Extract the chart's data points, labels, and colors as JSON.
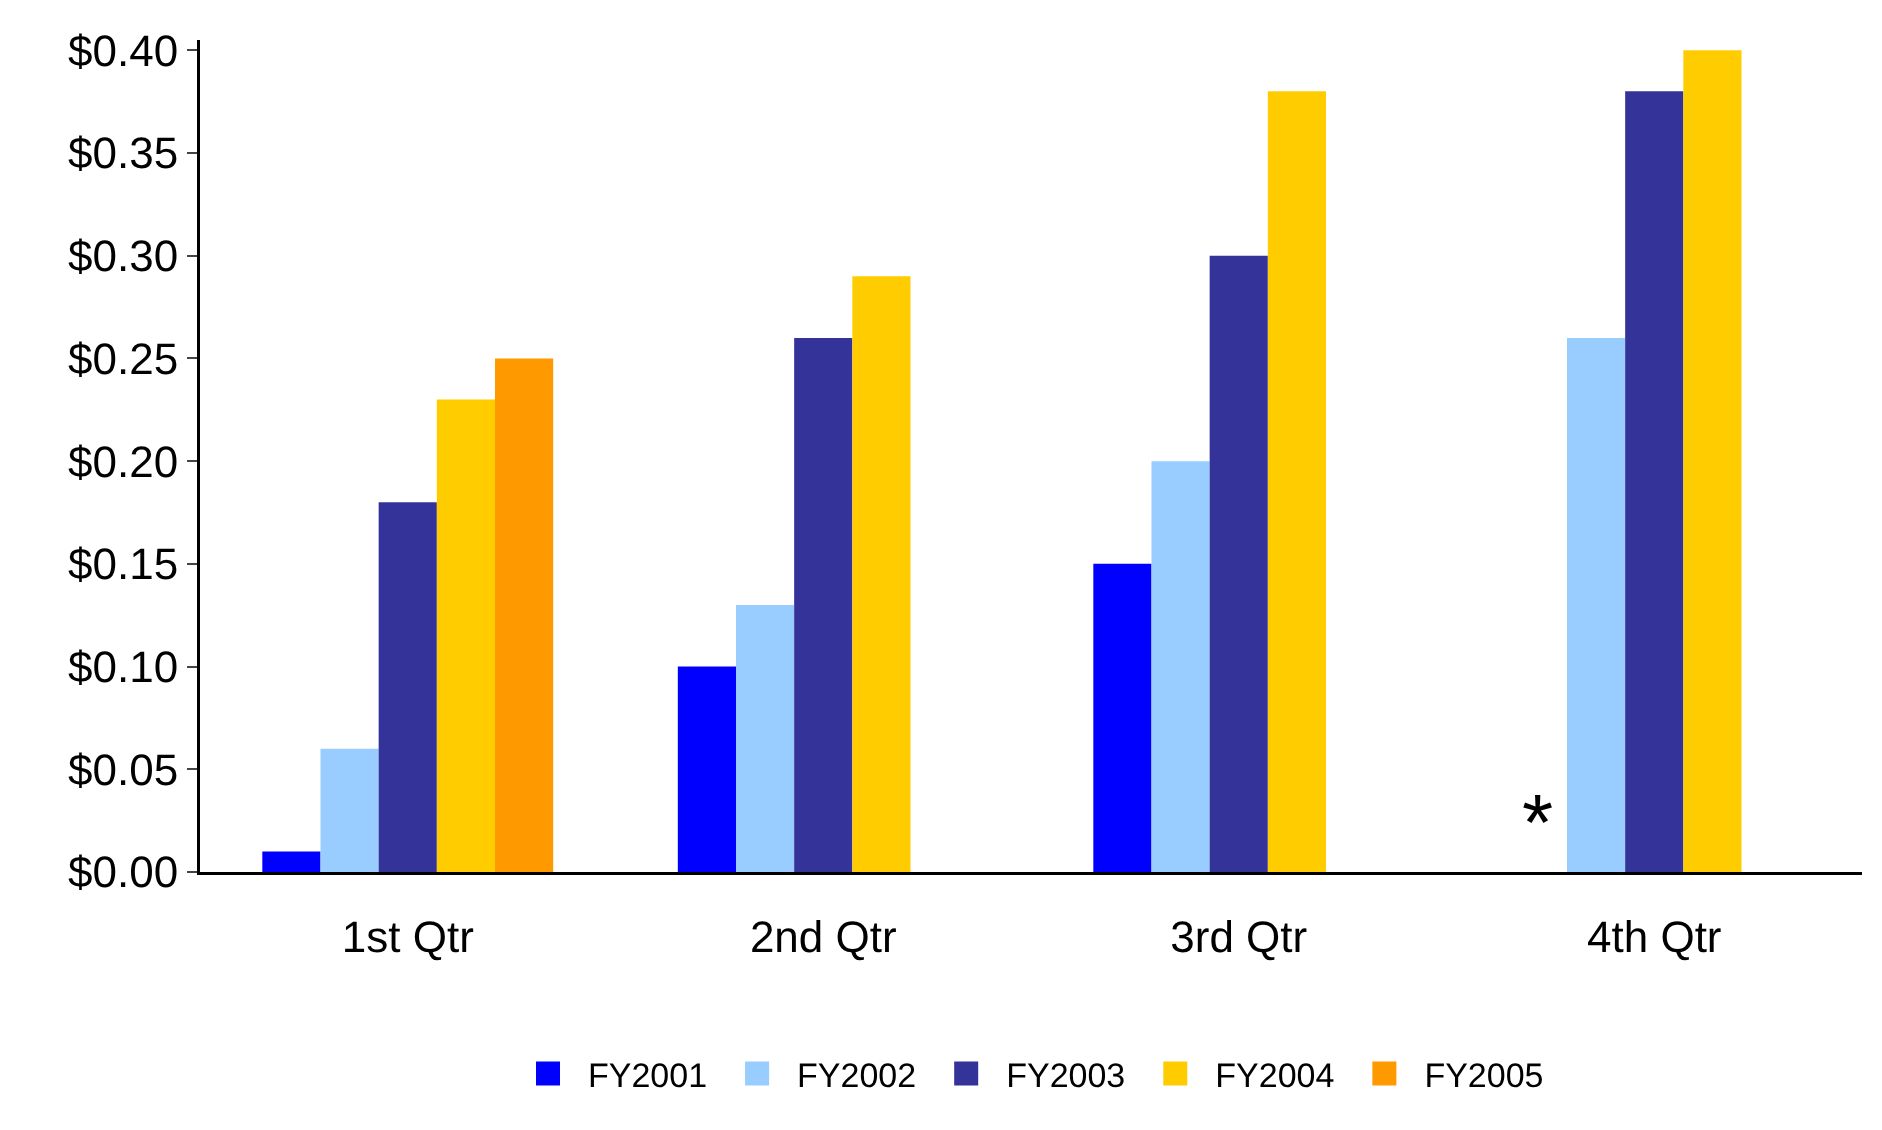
{
  "chart_data": {
    "type": "bar",
    "categories": [
      "1st Qtr",
      "2nd Qtr",
      "3rd Qtr",
      "4th Qtr"
    ],
    "series": [
      {
        "name": "FY2001",
        "color": "#0000ff",
        "values": [
          0.01,
          0.1,
          0.15,
          null
        ]
      },
      {
        "name": "FY2002",
        "color": "#99ccff",
        "values": [
          0.06,
          0.13,
          0.2,
          0.26
        ]
      },
      {
        "name": "FY2003",
        "color": "#333399",
        "values": [
          0.18,
          0.26,
          0.3,
          0.38
        ]
      },
      {
        "name": "FY2004",
        "color": "#ffcc00",
        "values": [
          0.23,
          0.29,
          0.38,
          0.4
        ]
      },
      {
        "name": "FY2005",
        "color": "#ff9900",
        "values": [
          0.25,
          null,
          null,
          null
        ]
      }
    ],
    "ylim": [
      0,
      0.405
    ],
    "yticks": [
      {
        "value": 0,
        "label": "$0.00"
      },
      {
        "value": 0.05,
        "label": "$0.05"
      },
      {
        "value": 0.1,
        "label": "$0.10"
      },
      {
        "value": 0.15,
        "label": "$0.15"
      },
      {
        "value": 0.2,
        "label": "$0.20"
      },
      {
        "value": 0.25,
        "label": "$0.25"
      },
      {
        "value": 0.3,
        "label": "$0.30"
      },
      {
        "value": 0.35,
        "label": "$0.35"
      },
      {
        "value": 0.4,
        "label": "$0.40"
      }
    ],
    "annotations": [
      {
        "text": "*",
        "x": "4th Qtr",
        "y": 0
      }
    ],
    "grid": false,
    "legend": "bottom"
  }
}
